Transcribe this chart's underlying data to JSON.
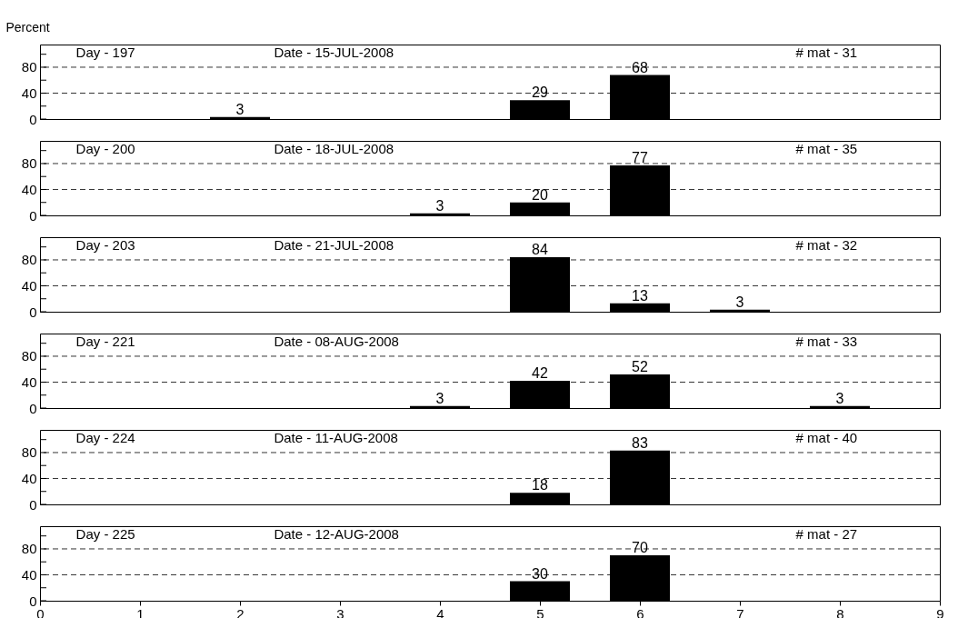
{
  "chart_data": [
    {
      "type": "bar",
      "ylabel": "Percent",
      "x": [
        2,
        5,
        6
      ],
      "values": [
        3,
        29,
        68
      ],
      "color": "#000000",
      "data_labels": true,
      "xlim": [
        0,
        9
      ],
      "xticks": [
        0,
        1,
        2,
        3,
        4,
        5,
        6,
        7,
        8,
        9
      ],
      "ylim": [
        0,
        115
      ],
      "yticks": [
        0,
        {
          "value": 20,
          "label": null
        },
        40,
        {
          "value": 60,
          "label": null
        },
        80,
        {
          "value": 100,
          "label": null
        }
      ],
      "grid": "y",
      "tick_labels": "y",
      "annotations": [
        "Day - 197",
        "Date - 15-JUL-2008",
        "# mat - 31"
      ]
    },
    {
      "type": "bar",
      "x": [
        4,
        5,
        6
      ],
      "values": [
        3,
        20,
        77
      ],
      "color": "#000000",
      "data_labels": true,
      "xlim": [
        0,
        9
      ],
      "xticks": [
        0,
        1,
        2,
        3,
        4,
        5,
        6,
        7,
        8,
        9
      ],
      "ylim": [
        0,
        115
      ],
      "yticks": [
        0,
        {
          "value": 20,
          "label": null
        },
        40,
        {
          "value": 60,
          "label": null
        },
        80,
        {
          "value": 100,
          "label": null
        }
      ],
      "grid": "y",
      "tick_labels": "y",
      "annotations": [
        "Day - 200",
        "Date - 18-JUL-2008",
        "# mat - 35"
      ]
    },
    {
      "type": "bar",
      "x": [
        5,
        6,
        7
      ],
      "values": [
        84,
        13,
        3
      ],
      "color": "#000000",
      "data_labels": true,
      "xlim": [
        0,
        9
      ],
      "xticks": [
        0,
        1,
        2,
        3,
        4,
        5,
        6,
        7,
        8,
        9
      ],
      "ylim": [
        0,
        115
      ],
      "yticks": [
        0,
        {
          "value": 20,
          "label": null
        },
        40,
        {
          "value": 60,
          "label": null
        },
        80,
        {
          "value": 100,
          "label": null
        }
      ],
      "grid": "y",
      "tick_labels": "y",
      "annotations": [
        "Day - 203",
        "Date - 21-JUL-2008",
        "# mat - 32"
      ]
    },
    {
      "type": "bar",
      "x": [
        4,
        5,
        6,
        8
      ],
      "values": [
        3,
        42,
        52,
        3
      ],
      "color": "#000000",
      "data_labels": true,
      "xlim": [
        0,
        9
      ],
      "xticks": [
        0,
        1,
        2,
        3,
        4,
        5,
        6,
        7,
        8,
        9
      ],
      "ylim": [
        0,
        115
      ],
      "yticks": [
        0,
        {
          "value": 20,
          "label": null
        },
        40,
        {
          "value": 60,
          "label": null
        },
        80,
        {
          "value": 100,
          "label": null
        }
      ],
      "grid": "y",
      "tick_labels": "y",
      "annotations": [
        "Day - 221",
        "Date - 08-AUG-2008",
        "# mat - 33"
      ]
    },
    {
      "type": "bar",
      "x": [
        5,
        6
      ],
      "values": [
        18,
        83
      ],
      "color": "#000000",
      "data_labels": true,
      "xlim": [
        0,
        9
      ],
      "xticks": [
        0,
        1,
        2,
        3,
        4,
        5,
        6,
        7,
        8,
        9
      ],
      "ylim": [
        0,
        115
      ],
      "yticks": [
        0,
        {
          "value": 20,
          "label": null
        },
        40,
        {
          "value": 60,
          "label": null
        },
        80,
        {
          "value": 100,
          "label": null
        }
      ],
      "grid": "y",
      "tick_labels": "y",
      "annotations": [
        "Day - 224",
        "Date - 11-AUG-2008",
        "# mat - 40"
      ]
    },
    {
      "type": "bar",
      "x": [
        5,
        6
      ],
      "values": [
        30,
        70
      ],
      "color": "#000000",
      "data_labels": true,
      "xlim": [
        0,
        9
      ],
      "xticks": [
        0,
        1,
        2,
        3,
        4,
        5,
        6,
        7,
        8,
        9
      ],
      "ylim": [
        0,
        115
      ],
      "yticks": [
        0,
        {
          "value": 20,
          "label": null
        },
        40,
        {
          "value": 60,
          "label": null
        },
        80,
        {
          "value": 100,
          "label": null
        }
      ],
      "grid": "y",
      "annotations": [
        "Day - 225",
        "Date - 12-AUG-2008",
        "# mat - 27"
      ]
    }
  ]
}
